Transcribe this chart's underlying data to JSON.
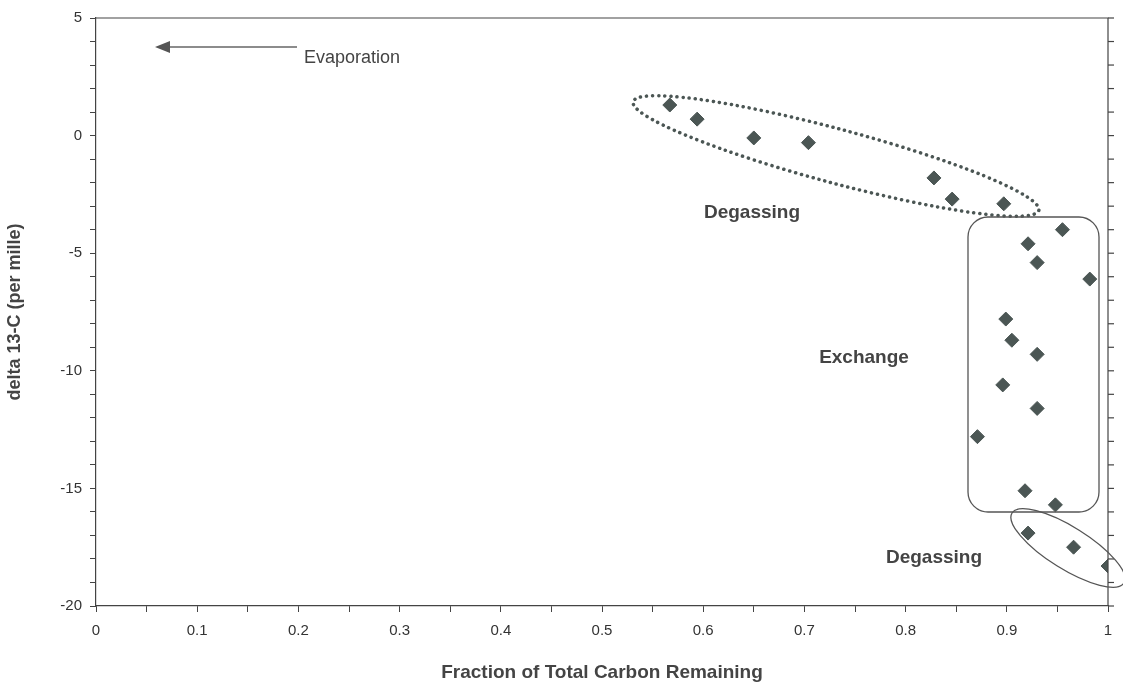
{
  "chart_data": {
    "type": "scatter",
    "xlabel": "Fraction of Total Carbon Remaining",
    "ylabel": "delta 13-C (per mille)",
    "x": [
      0.567,
      0.594,
      0.65,
      0.704,
      0.828,
      0.846,
      0.897,
      0.955,
      0.921,
      0.93,
      0.982,
      0.899,
      0.905,
      0.93,
      0.896,
      0.93,
      0.871,
      0.918,
      0.948,
      0.921,
      0.966,
      1.0
    ],
    "values": [
      1.3,
      0.7,
      -0.1,
      -0.3,
      -1.8,
      -2.7,
      -2.9,
      -4.0,
      -4.6,
      -5.4,
      -6.1,
      -7.8,
      -8.7,
      -9.3,
      -10.6,
      -11.6,
      -12.8,
      -15.1,
      -15.7,
      -16.9,
      -17.5,
      -18.3
    ],
    "color": "#4b5654",
    "marker": "diamond",
    "grid": false,
    "legend": false,
    "xlim": [
      0,
      1
    ],
    "xticks": [
      0,
      {
        "value": 0.05,
        "label": null
      },
      0.1,
      {
        "value": 0.15,
        "label": null
      },
      0.2,
      {
        "value": 0.25,
        "label": null
      },
      0.3,
      {
        "value": 0.35,
        "label": null
      },
      0.4,
      {
        "value": 0.45,
        "label": null
      },
      0.5,
      {
        "value": 0.55,
        "label": null
      },
      0.6,
      {
        "value": 0.65,
        "label": null
      },
      0.7,
      {
        "value": 0.75,
        "label": null
      },
      0.8,
      {
        "value": 0.85,
        "label": null
      },
      0.9,
      {
        "value": 0.95,
        "label": null
      },
      1
    ],
    "ylim": [
      -20,
      5
    ],
    "yticks": [
      -20,
      {
        "value": -19,
        "label": null
      },
      {
        "value": -18,
        "label": null
      },
      {
        "value": -17,
        "label": null
      },
      {
        "value": -16,
        "label": null
      },
      -15,
      {
        "value": -14,
        "label": null
      },
      {
        "value": -13,
        "label": null
      },
      {
        "value": -12,
        "label": null
      },
      {
        "value": -11,
        "label": null
      },
      -10,
      {
        "value": -9,
        "label": null
      },
      {
        "value": -8,
        "label": null
      },
      {
        "value": -7,
        "label": null
      },
      {
        "value": -6,
        "label": null
      },
      -5,
      {
        "value": -4,
        "label": null
      },
      {
        "value": -3,
        "label": null
      },
      {
        "value": -2,
        "label": null
      },
      {
        "value": -1,
        "label": null
      },
      0,
      {
        "value": 1,
        "label": null
      },
      {
        "value": 2,
        "label": null
      },
      {
        "value": 3,
        "label": null
      },
      {
        "value": 4,
        "label": null
      },
      5
    ],
    "annotations": [
      "Evaporation",
      "Degassing",
      "Exchange",
      "Degassing"
    ]
  }
}
